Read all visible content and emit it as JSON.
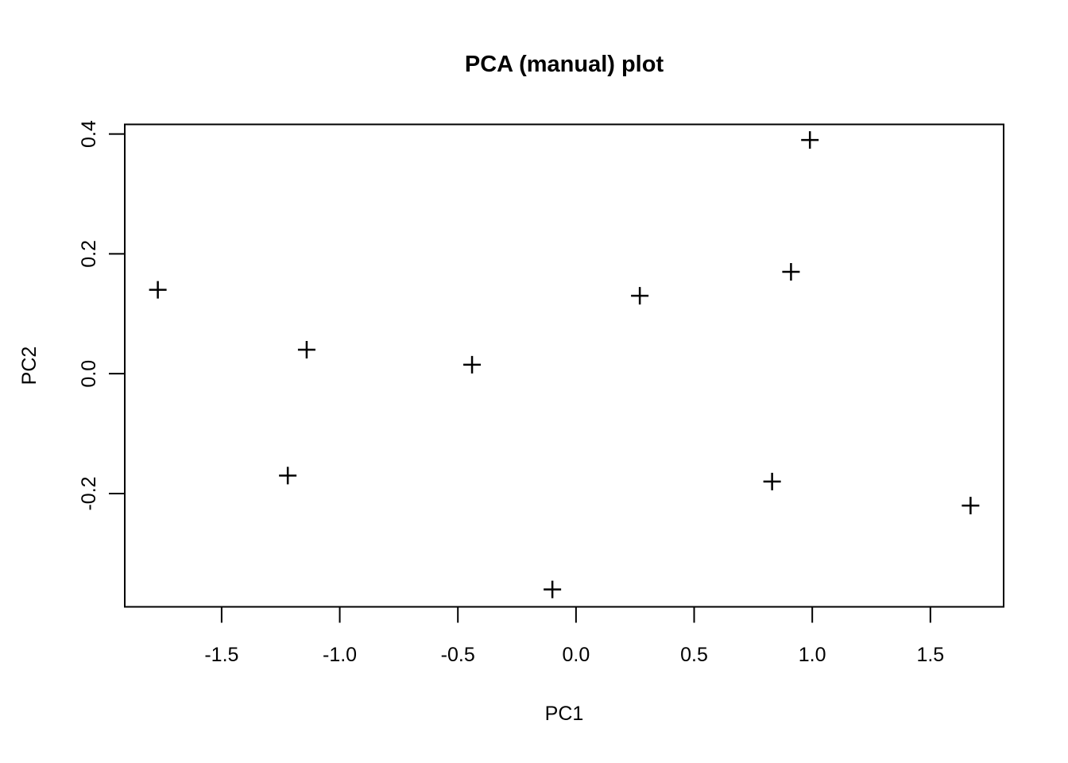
{
  "figure": {
    "background": "#ffffff",
    "foreground": "#000000"
  },
  "chart_data": {
    "type": "scatter",
    "title": "PCA (manual) plot",
    "xlabel": "PC1",
    "ylabel": "PC2",
    "marker": "plus-cross (R pch 3)",
    "marker_color": "#000000",
    "grid": false,
    "legend": null,
    "xlim": [
      -1.91,
      1.81
    ],
    "ylim": [
      -0.389,
      0.416
    ],
    "x_ticks": {
      "values": [
        -1.5,
        -1.0,
        -0.5,
        0.0,
        0.5,
        1.0,
        1.5
      ],
      "labels": [
        "-1.5",
        "-1.0",
        "-0.5",
        "0.0",
        "0.5",
        "1.0",
        "1.5"
      ]
    },
    "y_ticks": {
      "values": [
        -0.2,
        0.0,
        0.2,
        0.4
      ],
      "labels": [
        "-0.2",
        "0.0",
        "0.2",
        "0.4"
      ]
    },
    "points": [
      {
        "x": -1.77,
        "y": 0.14
      },
      {
        "x": -1.22,
        "y": -0.17
      },
      {
        "x": -1.14,
        "y": 0.04
      },
      {
        "x": -0.44,
        "y": 0.015
      },
      {
        "x": -0.1,
        "y": -0.36
      },
      {
        "x": 0.27,
        "y": 0.13
      },
      {
        "x": 0.83,
        "y": -0.18
      },
      {
        "x": 0.91,
        "y": 0.17
      },
      {
        "x": 0.99,
        "y": 0.39
      },
      {
        "x": 1.67,
        "y": -0.22
      }
    ]
  }
}
